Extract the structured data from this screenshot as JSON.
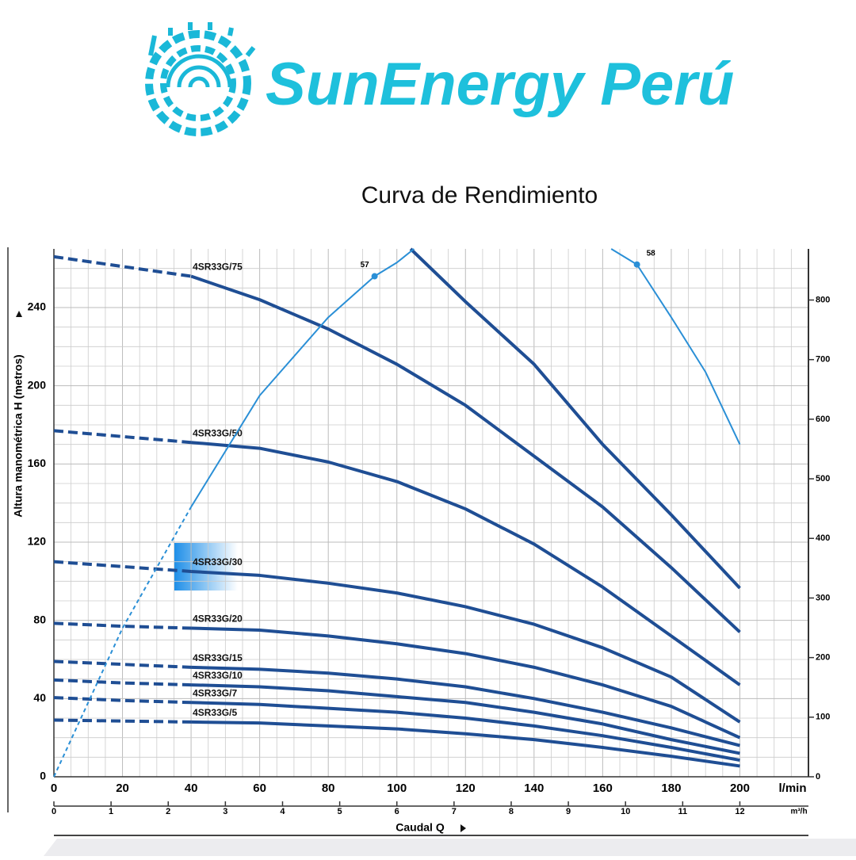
{
  "brand": "SunEnergy Perú",
  "chart_data": {
    "type": "line",
    "title": "Curva de  Rendimiento",
    "ylabel": "Altura manométrica H (metros)",
    "xlabel": "Caudal Q",
    "xunit": "l/min",
    "x2unit": "m³/h",
    "x": [
      0,
      20,
      40,
      60,
      80,
      100,
      120,
      140,
      160,
      180,
      200
    ],
    "xlim": [
      0,
      220
    ],
    "xticks": [
      0,
      20,
      40,
      60,
      80,
      100,
      120,
      140,
      160,
      180,
      200
    ],
    "x2lim": [
      0,
      13.2
    ],
    "x2ticks": [
      0,
      1,
      2,
      3,
      4,
      5,
      6,
      7,
      8,
      9,
      10,
      11,
      12
    ],
    "ylim": [
      0,
      270
    ],
    "yticks": [
      0,
      40,
      80,
      120,
      160,
      200,
      240
    ],
    "y2lim": [
      0,
      885.8
    ],
    "y2ticks": [
      0,
      100,
      200,
      300,
      400,
      500,
      600,
      700,
      800
    ],
    "grid": true,
    "grid_minor": 4,
    "dashed_below_x": 40,
    "series": [
      {
        "name": "4SR33G/75",
        "color": "#1f4e94",
        "values": [
          266,
          261,
          256,
          244,
          229,
          211,
          190,
          164,
          138,
          107,
          74
        ]
      },
      {
        "color": "#1f4e94",
        "x": [
          104,
          120,
          140,
          160,
          180,
          200
        ],
        "values": [
          270,
          243,
          211,
          170,
          134,
          96.5
        ]
      },
      {
        "name": "4SR33G/50",
        "color": "#1f4e94",
        "values": [
          177,
          174,
          171,
          168,
          161,
          151,
          137,
          119,
          97,
          72,
          47
        ]
      },
      {
        "name": "4SR33G/30",
        "color": "#1f4e94",
        "values": [
          110,
          107.5,
          105,
          103,
          99,
          94,
          87,
          78,
          66,
          51,
          28
        ]
      },
      {
        "name": "4SR33G/20",
        "color": "#1f4e94",
        "values": [
          78.5,
          77,
          76,
          75,
          72,
          68,
          63,
          56,
          47,
          36,
          20
        ]
      },
      {
        "name": "4SR33G/15",
        "color": "#1f4e94",
        "values": [
          59,
          57.5,
          56,
          55,
          53,
          50,
          46,
          40,
          33,
          25,
          16
        ]
      },
      {
        "name": "4SR33G/10",
        "color": "#1f4e94",
        "values": [
          49.5,
          48,
          47,
          46,
          44,
          41,
          38,
          33,
          27,
          19,
          12
        ]
      },
      {
        "name": "4SR33G/7",
        "color": "#1f4e94",
        "values": [
          40.5,
          39,
          38,
          37,
          35,
          33,
          30,
          26,
          21,
          15,
          8.5
        ]
      },
      {
        "name": "4SR33G/5",
        "color": "#1f4e94",
        "values": [
          29,
          28.5,
          28,
          27.5,
          26,
          24.5,
          22,
          19,
          15,
          10.5,
          5.5
        ]
      },
      {
        "color": "#2a8fd6",
        "thin": true,
        "x": [
          0,
          20,
          40,
          60,
          80,
          93.5,
          100,
          105
        ],
        "values": [
          0,
          76,
          138,
          195,
          235,
          256,
          263,
          270
        ],
        "point": {
          "index": 5,
          "label": "57"
        }
      },
      {
        "color": "#2a8fd6",
        "thin": true,
        "x": [
          162.5,
          170,
          180,
          190,
          200
        ],
        "values": [
          270,
          262,
          235,
          207,
          170
        ],
        "point": {
          "index": 1,
          "label": "58"
        }
      }
    ]
  }
}
